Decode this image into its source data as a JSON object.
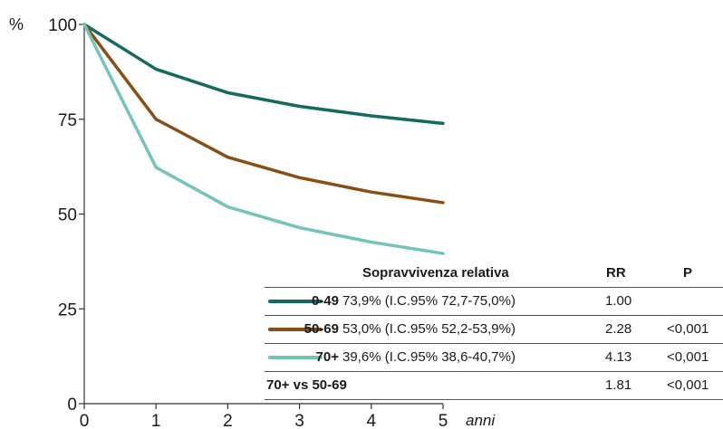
{
  "chart_data": {
    "type": "line",
    "y_unit_label": "%",
    "x_unit_label": "anni",
    "x": [
      0,
      1,
      2,
      3,
      4,
      5
    ],
    "xlim": [
      0,
      5
    ],
    "ylim": [
      0,
      100
    ],
    "yticks": [
      0,
      25,
      50,
      75,
      100
    ],
    "xticks": [
      0,
      1,
      2,
      3,
      4,
      5
    ],
    "grid": false,
    "series": [
      {
        "name": "0-49",
        "color": "#136b5e",
        "values": [
          100,
          88.2,
          82.0,
          78.4,
          75.9,
          73.9
        ]
      },
      {
        "name": "50-69",
        "color": "#8a4e14",
        "values": [
          100,
          75.0,
          65.0,
          59.6,
          55.8,
          53.0
        ]
      },
      {
        "name": "70+",
        "color": "#72c4ba",
        "values": [
          100,
          62.3,
          51.9,
          46.4,
          42.6,
          39.6
        ]
      }
    ],
    "legend_table": {
      "headers": {
        "survival": "Sopravvivenza relativa",
        "rr": "RR",
        "p": "P"
      },
      "rows": [
        {
          "group": "0-49",
          "survival": "73,9% (I.C.95% 72,7-75,0%)",
          "rr": "1.00",
          "p": "",
          "color": "#136b5e"
        },
        {
          "group": "50-69",
          "survival": "53,0% (I.C.95% 52,2-53,9%)",
          "rr": "2.28",
          "p": "<0,001",
          "color": "#8a4e14"
        },
        {
          "group": "70+",
          "survival": "39,6% (I.C.95% 38,6-40,7%)",
          "rr": "4.13",
          "p": "<0,001",
          "color": "#72c4ba"
        }
      ],
      "comparison": {
        "label": "70+ vs 50-69",
        "rr": "1.81",
        "p": "<0,001"
      }
    }
  }
}
